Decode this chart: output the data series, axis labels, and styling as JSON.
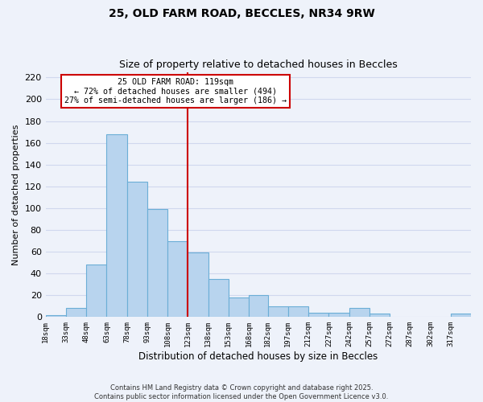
{
  "title_line1": "25, OLD FARM ROAD, BECCLES, NR34 9RW",
  "title_line2": "Size of property relative to detached houses in Beccles",
  "xlabel": "Distribution of detached houses by size in Beccles",
  "ylabel": "Number of detached properties",
  "bar_color": "#b8d4ee",
  "bar_edge_color": "#6baed6",
  "bin_edges": [
    18,
    33,
    48,
    63,
    78,
    93,
    108,
    123,
    138,
    153,
    168,
    182,
    197,
    212,
    227,
    242,
    257,
    272,
    287,
    302,
    317,
    332
  ],
  "bin_labels": [
    "18sqm",
    "33sqm",
    "48sqm",
    "63sqm",
    "78sqm",
    "93sqm",
    "108sqm",
    "123sqm",
    "138sqm",
    "153sqm",
    "168sqm",
    "182sqm",
    "197sqm",
    "212sqm",
    "227sqm",
    "242sqm",
    "257sqm",
    "272sqm",
    "287sqm",
    "302sqm",
    "317sqm"
  ],
  "values": [
    2,
    8,
    48,
    168,
    124,
    99,
    70,
    59,
    35,
    18,
    20,
    10,
    10,
    4,
    4,
    8,
    3,
    0,
    0,
    0,
    3
  ],
  "vline_x": 123,
  "vline_color": "#cc0000",
  "annotation_title": "25 OLD FARM ROAD: 119sqm",
  "annotation_line2": "← 72% of detached houses are smaller (494)",
  "annotation_line3": "27% of semi-detached houses are larger (186) →",
  "annotation_box_color": "#ffffff",
  "annotation_box_edge": "#cc0000",
  "ylim": [
    0,
    225
  ],
  "yticks": [
    0,
    20,
    40,
    60,
    80,
    100,
    120,
    140,
    160,
    180,
    200,
    220
  ],
  "bg_color": "#eef2fa",
  "grid_color": "#d0d8ee",
  "footer_line1": "Contains HM Land Registry data © Crown copyright and database right 2025.",
  "footer_line2": "Contains public sector information licensed under the Open Government Licence v3.0."
}
